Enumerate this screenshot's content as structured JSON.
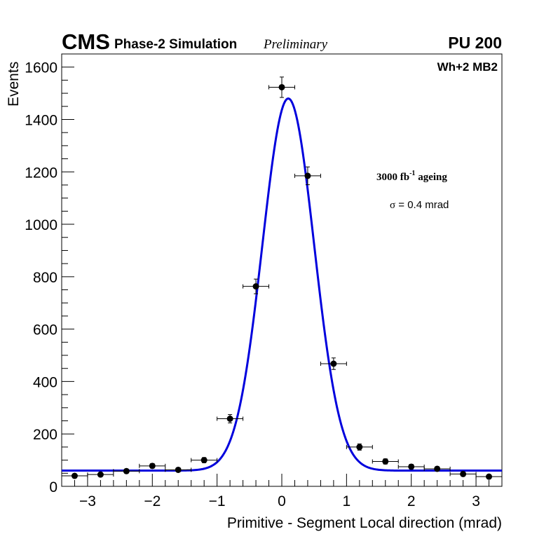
{
  "header": {
    "experiment": "CMS",
    "subtitle": "Phase-2 Simulation",
    "status": "Preliminary",
    "pileup": "PU 200"
  },
  "annotations": {
    "station": "Wh+2 MB2",
    "ageing_prefix": "3000 fb",
    "ageing_exp": "-1",
    "ageing_suffix": " ageing",
    "sigma_symbol": "σ",
    "sigma_value": " = 0.4 mrad"
  },
  "chart_data": {
    "type": "scatter",
    "xlabel": "Primitive - Segment Local direction (mrad)",
    "ylabel": "Events",
    "xlim": [
      -3.4,
      3.4
    ],
    "ylim": [
      0,
      1650
    ],
    "x_ticks": [
      -3,
      -2,
      -1,
      0,
      1,
      2,
      3
    ],
    "x_tick_labels": [
      "−3",
      "−2",
      "−1",
      "0",
      "1",
      "2",
      "3"
    ],
    "y_ticks": [
      0,
      200,
      400,
      600,
      800,
      1000,
      1200,
      1400,
      1600
    ],
    "y_tick_labels": [
      "0",
      "200",
      "400",
      "600",
      "800",
      "1000",
      "1200",
      "1400",
      "1600"
    ],
    "bin_half_width": 0.2,
    "series": [
      {
        "marker": "circle",
        "color": "#000000",
        "x": [
          -3.2,
          -2.8,
          -2.4,
          -2.0,
          -1.6,
          -1.2,
          -0.8,
          -0.4,
          0.0,
          0.4,
          0.8,
          1.2,
          1.6,
          2.0,
          2.4,
          2.8,
          3.2
        ],
        "y": [
          40,
          45,
          58,
          78,
          63,
          100,
          258,
          763,
          1523,
          1185,
          468,
          150,
          95,
          75,
          67,
          47,
          37
        ],
        "yerr": [
          6,
          7,
          8,
          9,
          8,
          10,
          16,
          28,
          39,
          34,
          22,
          12,
          10,
          9,
          8,
          7,
          6
        ]
      },
      {
        "style": "line",
        "color": "#0000dd",
        "fit": "gaussian",
        "amplitude": 1420,
        "mean": 0.1,
        "sigma": 0.4,
        "baseline": 60
      }
    ]
  }
}
